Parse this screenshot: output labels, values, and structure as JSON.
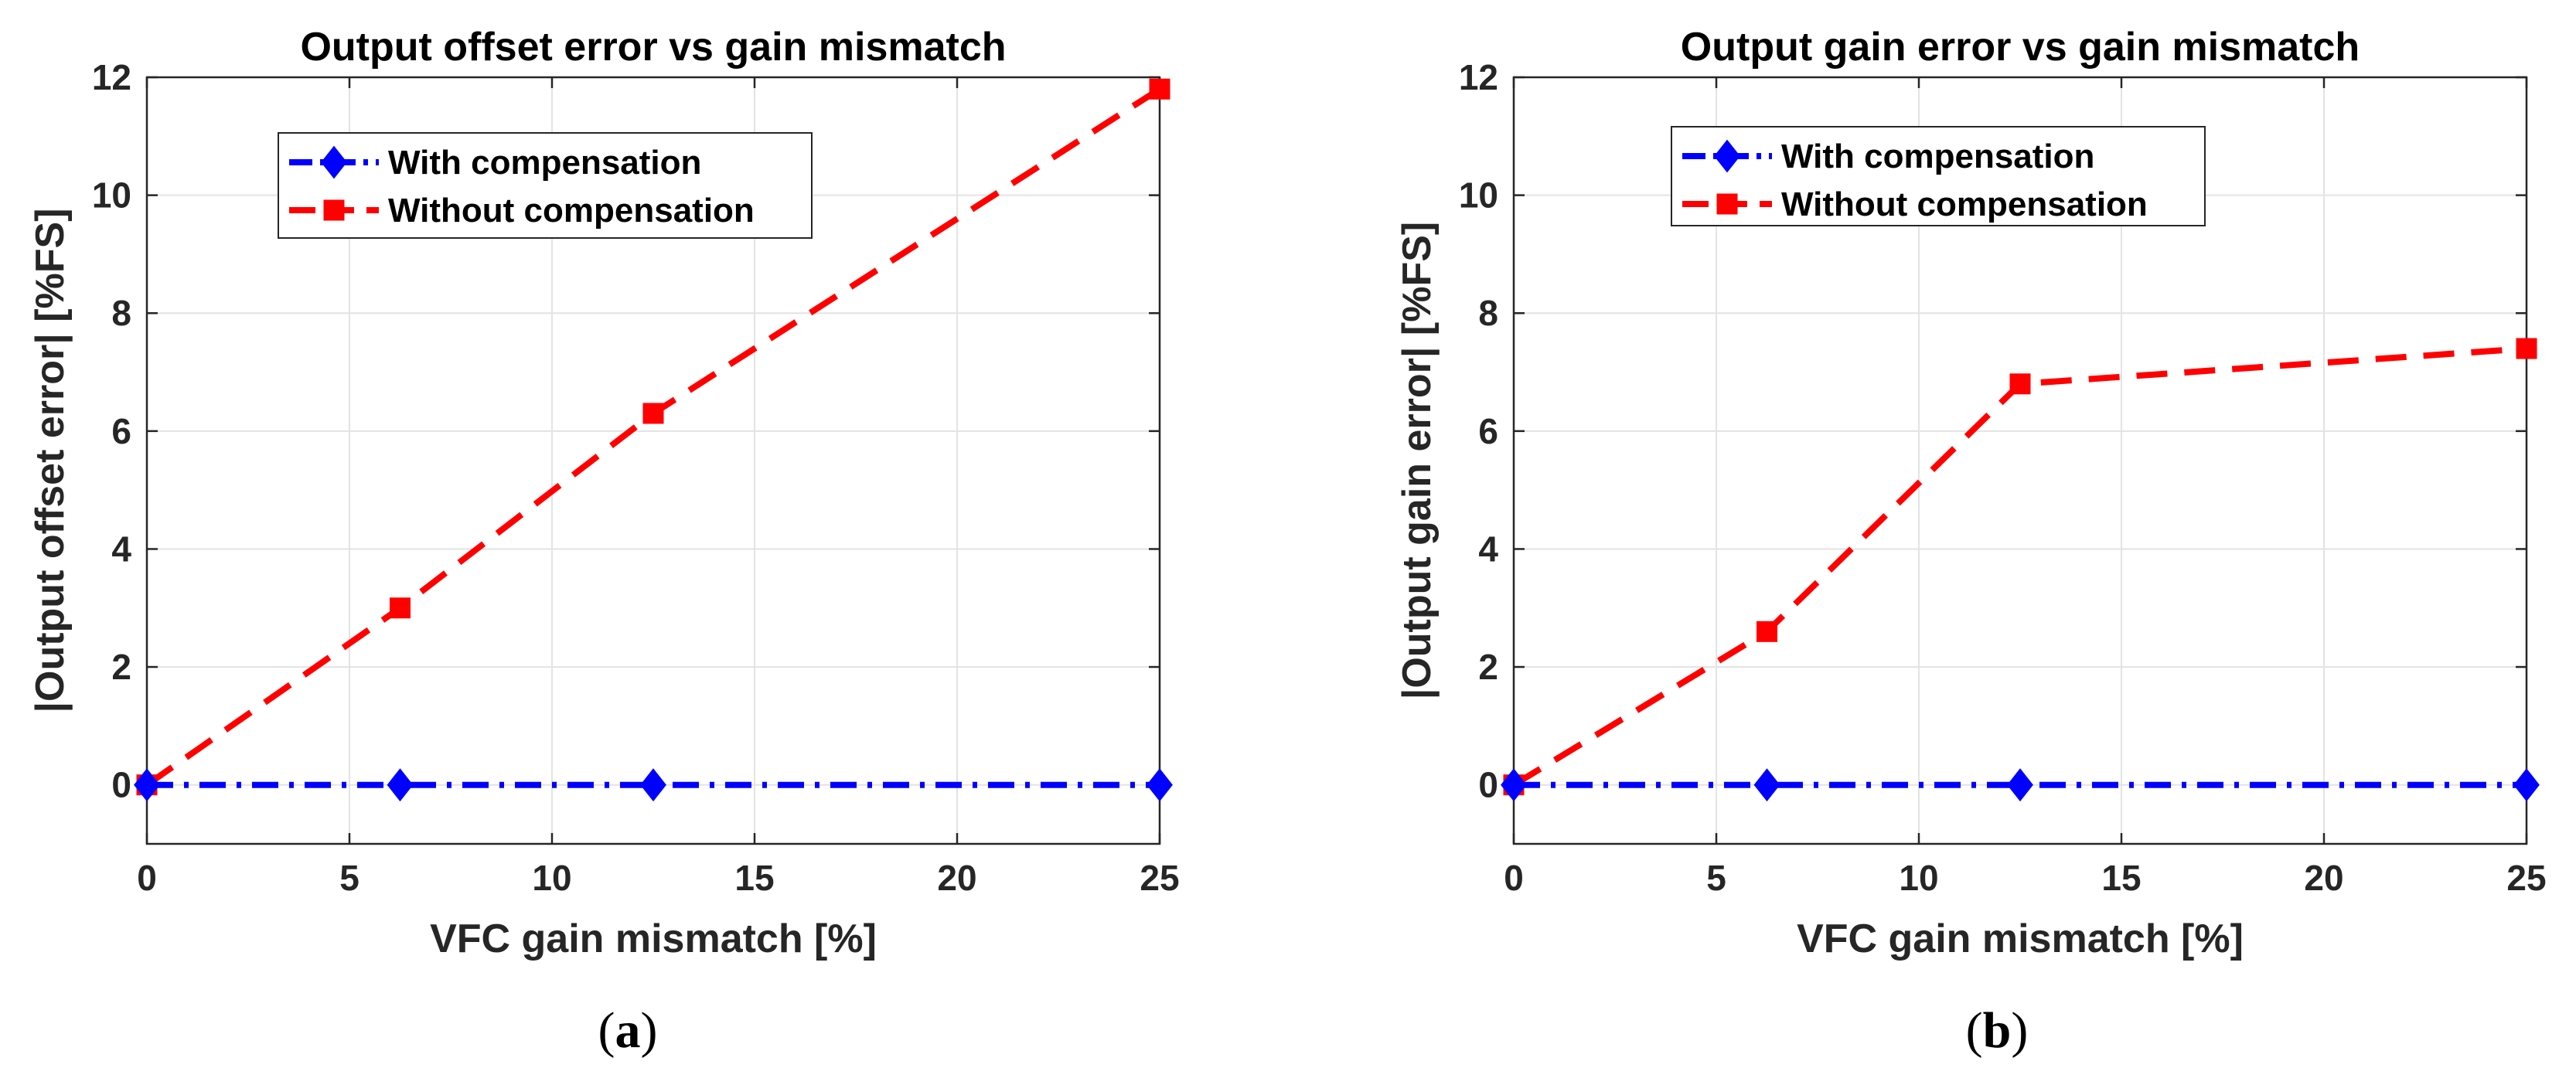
{
  "colors": {
    "with_compensation": "#0000ff",
    "without_compensation": "#ff0000",
    "grid": "#e3e3e3",
    "axis": "#262626"
  },
  "chart_data": [
    {
      "type": "line",
      "panel_caption": "a",
      "title": "Output offset error vs gain mismatch",
      "xlabel": "VFC gain mismatch [%]",
      "ylabel": "|Output offset error| [%FS]",
      "xlim": [
        0,
        25
      ],
      "ylim": [
        -1,
        12
      ],
      "xticks": [
        0,
        5,
        10,
        15,
        20,
        25
      ],
      "yticks": [
        0,
        2,
        4,
        6,
        8,
        10,
        12
      ],
      "grid": true,
      "legend_position": "top-center",
      "series": [
        {
          "name": "With compensation",
          "x": [
            0,
            6.25,
            12.5,
            25
          ],
          "values": [
            0,
            0,
            0,
            0
          ],
          "line_style": "dash-dot",
          "marker": "diamond",
          "color_key": "with_compensation"
        },
        {
          "name": "Without compensation",
          "x": [
            0,
            6.25,
            12.5,
            25
          ],
          "values": [
            0,
            3.0,
            6.3,
            11.8
          ],
          "line_style": "dashed",
          "marker": "square",
          "color_key": "without_compensation"
        }
      ]
    },
    {
      "type": "line",
      "panel_caption": "b",
      "title": "Output gain error vs gain mismatch",
      "xlabel": "VFC gain mismatch [%]",
      "ylabel": "|Output gain error| [%FS]",
      "xlim": [
        0,
        25
      ],
      "ylim": [
        -1,
        12
      ],
      "xticks": [
        0,
        5,
        10,
        15,
        20,
        25
      ],
      "yticks": [
        0,
        2,
        4,
        6,
        8,
        10,
        12
      ],
      "grid": true,
      "legend_position": "top-center",
      "series": [
        {
          "name": "With compensation",
          "x": [
            0,
            6.25,
            12.5,
            25
          ],
          "values": [
            0,
            0,
            0,
            0
          ],
          "line_style": "dash-dot",
          "marker": "diamond",
          "color_key": "with_compensation"
        },
        {
          "name": "Without compensation",
          "x": [
            0,
            6.25,
            12.5,
            25
          ],
          "values": [
            0,
            2.6,
            6.8,
            7.4
          ],
          "line_style": "dashed",
          "marker": "square",
          "color_key": "without_compensation"
        }
      ]
    }
  ]
}
